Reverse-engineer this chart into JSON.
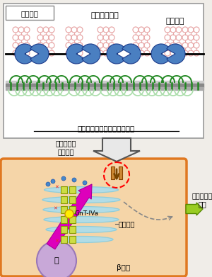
{
  "top_box_label": "細胞表面",
  "label_polysaccharide": "多分岐型糖鎖",
  "label_lectin": "レクチン",
  "label_transporter": "グルコーストランスポーター",
  "label_glucose_uptake": "グルコース\n取り込み",
  "label_gnt": "GnT-IVa",
  "label_golgi": "ゴルジ体",
  "label_nucleus": "核",
  "label_beta": "β細胞",
  "label_insulin": "インスリン\n分泌",
  "bg_color": "#f0ede8",
  "top_box_bg": "#ffffff",
  "bottom_box_bg": "#f5d5a8",
  "bottom_box_border": "#e07820",
  "blue_color": "#4a7fc1",
  "blue_dark": "#1a3a8a",
  "green_color": "#228822",
  "light_green_color": "#aaddaa",
  "pink_color": "#e8a8a8",
  "gray_membrane": "#999999",
  "dark_membrane": "#555555",
  "magenta_color": "#dd00bb",
  "yellow_color": "#ffee00",
  "light_blue_color": "#aaddee",
  "light_blue2": "#88ccdd",
  "orange_color": "#cc6600",
  "green_arrow": "#99cc22",
  "red_color": "#ee2222",
  "purple_nucleus": "#c8a8d8",
  "yellow_green_pillar": "#ccdd44"
}
